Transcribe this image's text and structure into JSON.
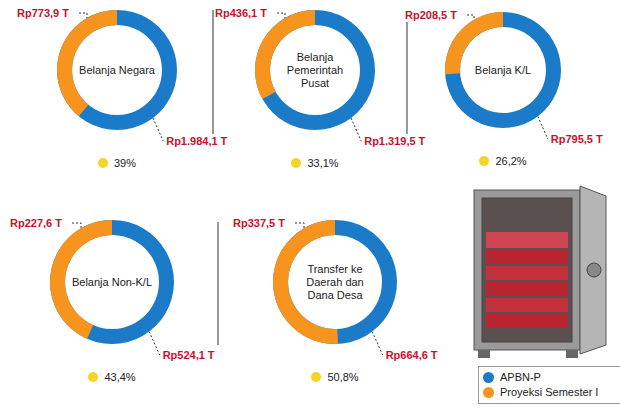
{
  "chart_data": [
    {
      "type": "pie",
      "title": "Belanja Negara",
      "categories": [
        "APBN-P",
        "Proyeksi Semester I"
      ],
      "values": [
        1984.1,
        773.9
      ],
      "value_labels": [
        "Rp1.984,1 T",
        "Rp773,9 T"
      ],
      "colors": [
        "#1b7bc9",
        "#f7941d"
      ],
      "data_labels": true,
      "share": {
        "value": 39,
        "label": "39%"
      }
    },
    {
      "type": "pie",
      "title": "Belanja Pemerintah Pusat",
      "categories": [
        "APBN-P",
        "Proyeksi Semester I"
      ],
      "values": [
        1319.5,
        436.1
      ],
      "value_labels": [
        "Rp1.319,5 T",
        "Rp436,1 T"
      ],
      "colors": [
        "#1b7bc9",
        "#f7941d"
      ],
      "data_labels": true,
      "share": {
        "value": 33.1,
        "label": "33,1%"
      }
    },
    {
      "type": "pie",
      "title": "Belanja K/L",
      "categories": [
        "APBN-P",
        "Proyeksi Semester I"
      ],
      "values": [
        795.5,
        208.5
      ],
      "value_labels": [
        "Rp795,5 T",
        "Rp208,5 T"
      ],
      "colors": [
        "#1b7bc9",
        "#f7941d"
      ],
      "data_labels": true,
      "share": {
        "value": 26.2,
        "label": "26,2%"
      }
    },
    {
      "type": "pie",
      "title": "Belanja Non-K/L",
      "categories": [
        "APBN-P",
        "Proyeksi Semester I"
      ],
      "values": [
        524.1,
        227.6
      ],
      "value_labels": [
        "Rp524,1 T",
        "Rp227,6 T"
      ],
      "colors": [
        "#1b7bc9",
        "#f7941d"
      ],
      "data_labels": true,
      "share": {
        "value": 43.4,
        "label": "43,4%"
      }
    },
    {
      "type": "pie",
      "title": "Transfer ke Daerah dan Dana Desa",
      "categories": [
        "APBN-P",
        "Proyeksi Semester I"
      ],
      "values": [
        664.6,
        337.5
      ],
      "value_labels": [
        "Rp664,6 T",
        "Rp337,5 T"
      ],
      "colors": [
        "#1b7bc9",
        "#f7941d"
      ],
      "data_labels": true,
      "share": {
        "value": 50.8,
        "label": "50,8%"
      },
      "legend": "bottom right"
    }
  ]
}
